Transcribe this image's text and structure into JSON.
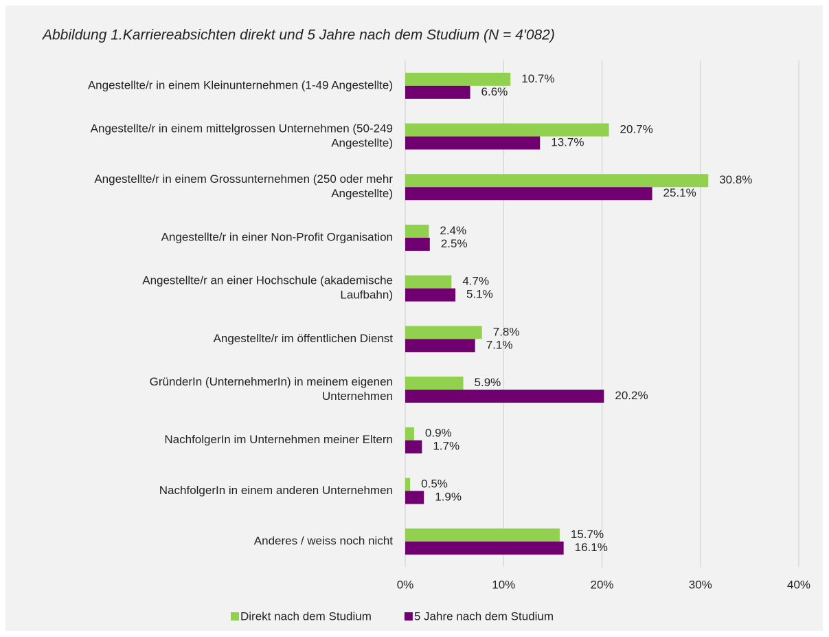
{
  "chart_data": {
    "type": "bar",
    "orientation": "horizontal",
    "title": "Abbildung 1.Karriereabsichten direkt und 5 Jahre nach dem Studium (N = 4'082)",
    "categories": [
      [
        "Angestellte/r in einem Kleinunternehmen (1-49 Angestellte)"
      ],
      [
        "Angestellte/r in einem mittelgrossen Unternehmen (50-249",
        "Angestellte)"
      ],
      [
        "Angestellte/r in einem Grossunternehmen (250 oder mehr",
        "Angestellte)"
      ],
      [
        "Angestellte/r in einer Non-Profit Organisation"
      ],
      [
        "Angestellte/r an einer Hochschule (akademische",
        "Laufbahn)"
      ],
      [
        "Angestellte/r im öffentlichen Dienst"
      ],
      [
        "GründerIn (UnternehmerIn) in meinem eigenen",
        "Unternehmen"
      ],
      [
        "NachfolgerIn im Unternehmen meiner Eltern"
      ],
      [
        "NachfolgerIn in einem anderen Unternehmen"
      ],
      [
        "Anderes / weiss noch nicht"
      ]
    ],
    "series": [
      {
        "name": "Direkt nach dem Studium",
        "color": "#92d050",
        "values": [
          10.7,
          20.7,
          30.8,
          2.4,
          4.7,
          7.8,
          5.9,
          0.9,
          0.5,
          15.7
        ],
        "value_labels": [
          "10.7%",
          "20.7%",
          "30.8%",
          "2.4%",
          "4.7%",
          "7.8%",
          "5.9%",
          "0.9%",
          "0.5%",
          "15.7%"
        ]
      },
      {
        "name": "5 Jahre nach dem Studium",
        "color": "#70006f",
        "values": [
          6.6,
          13.7,
          25.1,
          2.5,
          5.1,
          7.1,
          20.2,
          1.7,
          1.9,
          16.1
        ],
        "value_labels": [
          "6.6%",
          "13.7%",
          "25.1%",
          "2.5%",
          "5.1%",
          "7.1%",
          "20.2%",
          "1.7%",
          "1.9%",
          "16.1%"
        ]
      }
    ],
    "xlim": [
      0,
      40
    ],
    "xticks": [
      {
        "value": 0,
        "label": "0%"
      },
      {
        "value": 10,
        "label": "10%"
      },
      {
        "value": 20,
        "label": "20%"
      },
      {
        "value": 30,
        "label": "30%"
      },
      {
        "value": 40,
        "label": "40%"
      }
    ],
    "grid": true,
    "legend": "bottom"
  }
}
